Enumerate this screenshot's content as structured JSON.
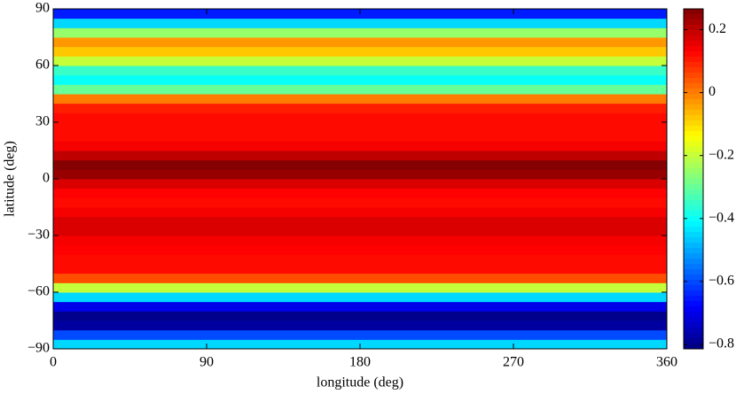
{
  "chart_data": {
    "type": "heatmap",
    "x_label": "longitude (deg)",
    "y_label": "latitude (deg)",
    "xlim": [
      0,
      360
    ],
    "xticks": [
      0,
      90,
      180,
      270,
      360
    ],
    "ylim": [
      -90,
      90
    ],
    "yticks": [
      {
        "value": -90,
        "label": "−90"
      },
      {
        "value": -60,
        "label": "−60"
      },
      {
        "value": -30,
        "label": "−30"
      },
      0,
      30,
      60,
      90
    ],
    "ybins": [
      -90,
      -85,
      -80,
      -75,
      -70,
      -65,
      -60,
      -55,
      -50,
      -45,
      -40,
      -35,
      -30,
      -25,
      -20,
      -15,
      -10,
      -5,
      0,
      5,
      10,
      15,
      20,
      25,
      30,
      35,
      40,
      45,
      50,
      55,
      60,
      65,
      70,
      75,
      80,
      85,
      90
    ],
    "values": [
      -0.45,
      -0.6,
      -0.78,
      -0.8,
      -0.7,
      -0.45,
      -0.2,
      0.05,
      0.12,
      0.12,
      0.13,
      0.14,
      0.17,
      0.17,
      0.14,
      0.12,
      0.13,
      0.17,
      0.24,
      0.26,
      0.2,
      0.14,
      0.12,
      0.12,
      0.12,
      0.1,
      0.0,
      -0.3,
      -0.4,
      -0.35,
      -0.2,
      -0.08,
      -0.03,
      -0.25,
      -0.45,
      -0.65
    ],
    "colormap": "jet",
    "zlim": [
      -0.814,
      0.266
    ],
    "zticks": [
      0.2,
      0,
      {
        "value": -0.2,
        "label": "−0.2"
      },
      {
        "value": -0.4,
        "label": "−0.4"
      },
      {
        "value": -0.6,
        "label": "−0.6"
      },
      {
        "value": -0.8,
        "label": "−0.8"
      }
    ]
  }
}
